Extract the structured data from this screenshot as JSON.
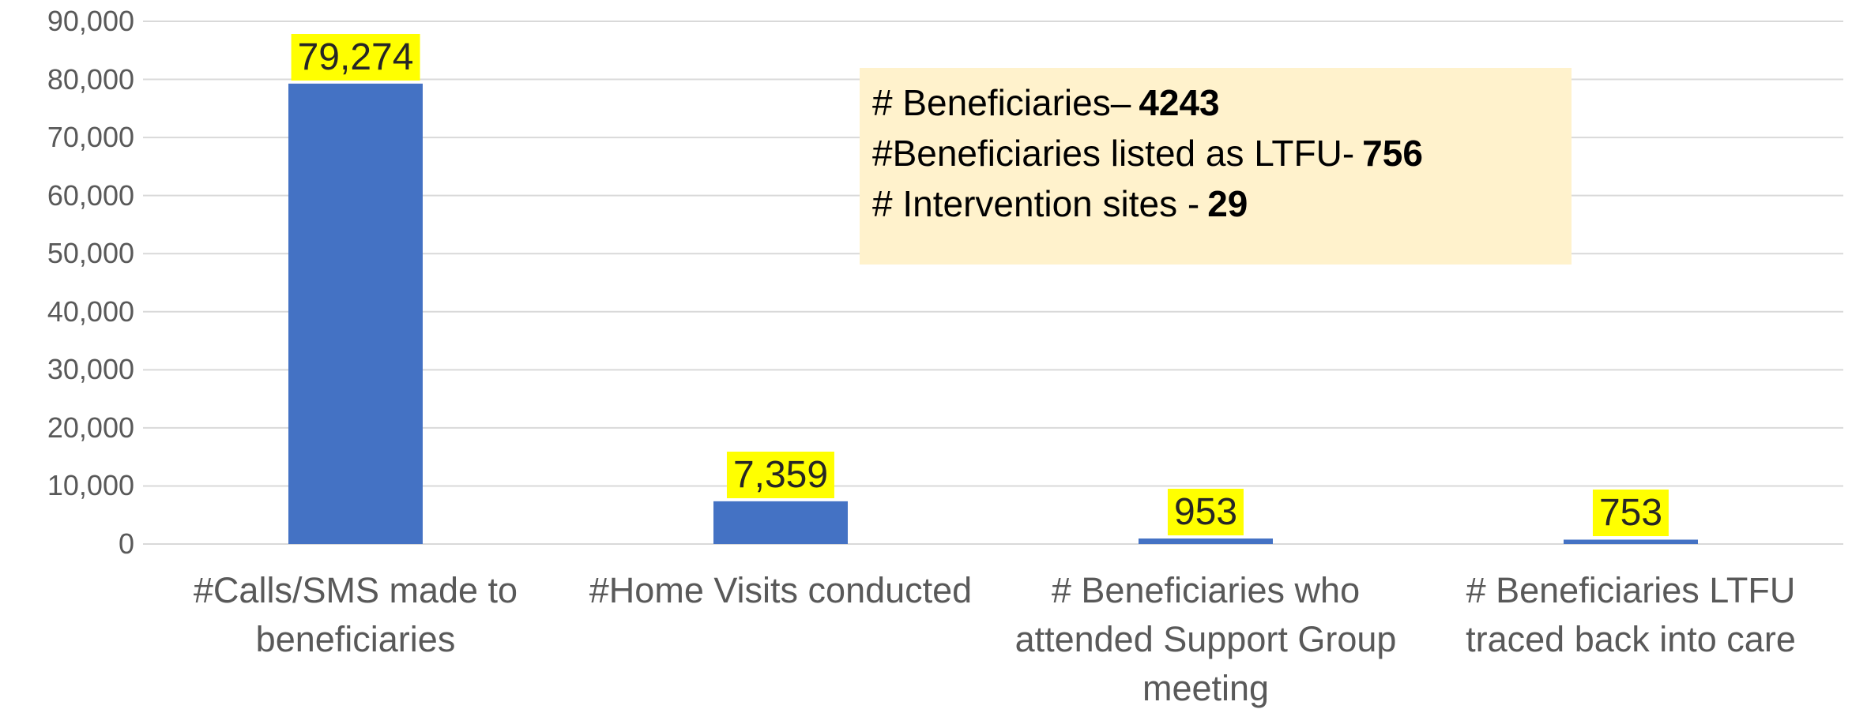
{
  "chart_data": {
    "type": "bar",
    "categories": [
      "#Calls/SMS made to beneficiaries",
      "#Home Visits conducted",
      "# Beneficiaries  who attended Support Group meeting",
      "# Beneficiaries LTFU traced back into care"
    ],
    "values": [
      79274,
      7359,
      953,
      753
    ],
    "value_labels": [
      "79,274",
      "7,359",
      "953",
      "753"
    ],
    "color": "#4472c4",
    "ylim": [
      0,
      90000
    ],
    "yticks": [
      0,
      {
        "value": 10000,
        "label": "10,000"
      },
      {
        "value": 20000,
        "label": "20,000"
      },
      {
        "value": 30000,
        "label": "30,000"
      },
      {
        "value": 40000,
        "label": "40,000"
      },
      {
        "value": 50000,
        "label": "50,000"
      },
      {
        "value": 60000,
        "label": "60,000"
      },
      {
        "value": 70000,
        "label": "70,000"
      },
      {
        "value": 80000,
        "label": "80,000"
      },
      {
        "value": 90000,
        "label": "90,000"
      }
    ],
    "grid": true,
    "annotation": [
      {
        "label": "# Beneficiaries–",
        "value": 4243
      },
      {
        "label": "#Beneficiaries listed as LTFU-",
        "value": 756
      },
      {
        "label": "# Intervention sites -",
        "value": 29
      }
    ]
  }
}
